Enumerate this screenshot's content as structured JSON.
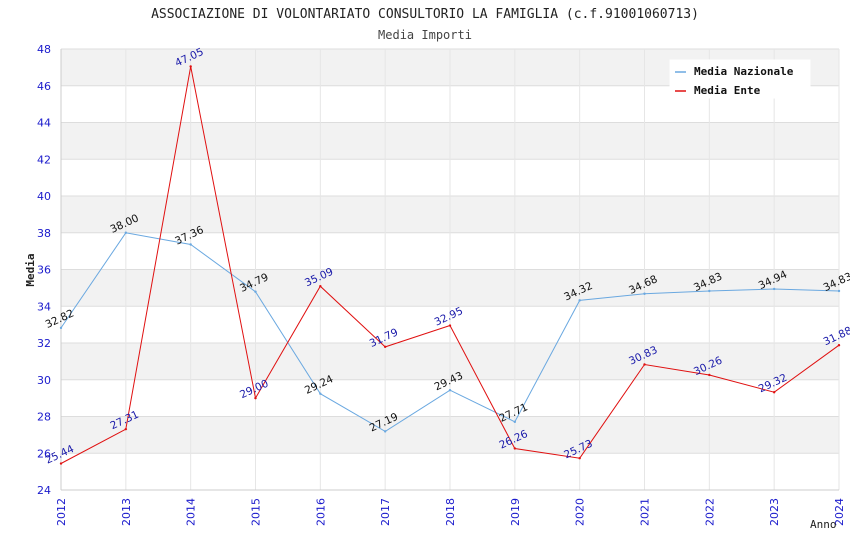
{
  "chart_data": {
    "type": "line",
    "title": "ASSOCIAZIONE DI VOLONTARIATO CONSULTORIO LA FAMIGLIA (c.f.91001060713)",
    "subtitle": "Media Importi",
    "xlabel": "Anno",
    "ylabel": "Media",
    "ylim": [
      24,
      48
    ],
    "yticks": [
      24,
      26,
      28,
      30,
      32,
      34,
      36,
      38,
      40,
      42,
      44,
      46,
      48
    ],
    "categories": [
      "2012",
      "2013",
      "2014",
      "2015",
      "2016",
      "2017",
      "2018",
      "2019",
      "2020",
      "2021",
      "2022",
      "2023",
      "2024"
    ],
    "legend_position": "top-right",
    "grid": true,
    "series": [
      {
        "name": "Media Nazionale",
        "color": "#6aa8e0",
        "label_color": "#111111",
        "values": [
          32.82,
          38.0,
          37.36,
          34.79,
          29.24,
          27.19,
          29.43,
          27.71,
          34.32,
          34.68,
          34.83,
          34.94,
          34.83
        ],
        "labels": [
          "32.82",
          "38.00",
          "37.36",
          "34.79",
          "29.24",
          "27.19",
          "29.43",
          "27.71",
          "34.32",
          "34.68",
          "34.83",
          "34.94",
          "34.83"
        ]
      },
      {
        "name": "Media Ente",
        "color": "#e01010",
        "label_color": "#1a1aaa",
        "values": [
          25.44,
          27.31,
          47.05,
          29.0,
          35.09,
          31.79,
          32.95,
          26.26,
          25.73,
          30.83,
          30.26,
          29.32,
          31.88
        ],
        "labels": [
          "25.44",
          "27.31",
          "47.05",
          "29.00",
          "35.09",
          "31.79",
          "32.95",
          "26.26",
          "25.73",
          "30.83",
          "30.26",
          "29.32",
          "31.88"
        ]
      }
    ]
  }
}
